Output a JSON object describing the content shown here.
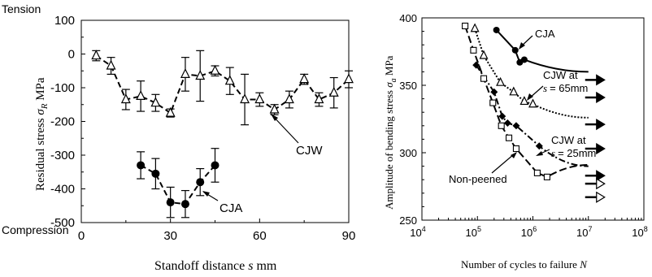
{
  "left_chart": {
    "type": "scatter",
    "xlabel_text": "Standoff distance ",
    "xlabel_symbol": "s",
    "xlabel_unit": " mm",
    "ylabel_text": "Residual stress ",
    "ylabel_symbol": "σ",
    "ylabel_sub": "R",
    "ylabel_unit": " MPa",
    "top_label": "Tension",
    "bottom_label": "Compression",
    "xlim": [
      0,
      90
    ],
    "ylim": [
      -500,
      100
    ],
    "xticks": [
      "0",
      "30",
      "60",
      "90"
    ],
    "yticks": [
      "100",
      "0",
      "-100",
      "-200",
      "-300",
      "-400",
      "-500"
    ],
    "series": [
      {
        "name": "CJW",
        "marker": "triangle",
        "line": "dashed",
        "points": [
          {
            "x": 5,
            "y": -5,
            "err": 15
          },
          {
            "x": 10,
            "y": -35,
            "err": 25
          },
          {
            "x": 15,
            "y": -135,
            "err": 30
          },
          {
            "x": 20,
            "y": -125,
            "err": 45
          },
          {
            "x": 25,
            "y": -145,
            "err": 25
          },
          {
            "x": 30,
            "y": -175,
            "err": 12
          },
          {
            "x": 35,
            "y": -60,
            "err": 50
          },
          {
            "x": 40,
            "y": -65,
            "err": 75
          },
          {
            "x": 45,
            "y": -50,
            "err": 15
          },
          {
            "x": 50,
            "y": -80,
            "err": 40
          },
          {
            "x": 55,
            "y": -135,
            "err": 75
          },
          {
            "x": 60,
            "y": -135,
            "err": 20
          },
          {
            "x": 65,
            "y": -165,
            "err": 15
          },
          {
            "x": 70,
            "y": -135,
            "err": 25
          },
          {
            "x": 75,
            "y": -75,
            "err": 15
          },
          {
            "x": 80,
            "y": -135,
            "err": 20
          },
          {
            "x": 85,
            "y": -115,
            "err": 45
          },
          {
            "x": 90,
            "y": -75,
            "err": 25
          }
        ]
      },
      {
        "name": "CJA",
        "marker": "circle",
        "line": "dashed",
        "points": [
          {
            "x": 20,
            "y": -330,
            "err": 40
          },
          {
            "x": 25,
            "y": -355,
            "err": 45
          },
          {
            "x": 30,
            "y": -440,
            "err": 45
          },
          {
            "x": 35,
            "y": -445,
            "err": 40
          },
          {
            "x": 40,
            "y": -380,
            "err": 40
          },
          {
            "x": 45,
            "y": -330,
            "err": 50
          }
        ]
      }
    ]
  },
  "right_chart": {
    "type": "scatter",
    "xscale": "log",
    "xlabel_text": "Number of cycles to failure ",
    "xlabel_symbol": "N",
    "ylabel_text": "Amplitude of bending stress ",
    "ylabel_symbol": "σ",
    "ylabel_sub": "a",
    "ylabel_unit": " MPa",
    "xlim": [
      10000,
      100000000
    ],
    "ylim": [
      250,
      400
    ],
    "xticks": [
      {
        "base": "10",
        "exp": "4"
      },
      {
        "base": "10",
        "exp": "5"
      },
      {
        "base": "10",
        "exp": "6"
      },
      {
        "base": "10",
        "exp": "7"
      },
      {
        "base": "10",
        "exp": "8"
      }
    ],
    "yticks": [
      "400",
      "350",
      "300",
      "250"
    ],
    "series": [
      {
        "name": "CJA",
        "marker": "circle",
        "points": [
          [
            220000,
            391
          ],
          [
            480000,
            376
          ],
          [
            580000,
            367
          ],
          [
            700000,
            369
          ]
        ],
        "runouts": [
          [
            10000000,
            354
          ]
        ]
      },
      {
        "name": "CJW at s = 65mm",
        "marker": "triangle",
        "points": [
          [
            90000,
            392
          ],
          [
            130000,
            372
          ],
          [
            260000,
            352
          ],
          [
            450000,
            345
          ],
          [
            700000,
            338
          ],
          [
            1000000,
            336
          ]
        ],
        "runouts": [
          [
            10000000,
            341
          ],
          [
            10000000,
            321
          ]
        ]
      },
      {
        "name": "CJW at s = 25mm",
        "marker": "diamond",
        "points": [
          [
            95000,
            365
          ],
          [
            200000,
            345
          ],
          [
            280000,
            327
          ],
          [
            350000,
            322
          ],
          [
            500000,
            320
          ],
          [
            1300000,
            305
          ]
        ],
        "runouts": [
          [
            10000000,
            303
          ]
        ]
      },
      {
        "name": "Non-peened",
        "marker": "square",
        "points": [
          [
            60000,
            394
          ],
          [
            85000,
            376
          ],
          [
            130000,
            355
          ],
          [
            190000,
            337
          ],
          [
            270000,
            320
          ],
          [
            370000,
            311
          ],
          [
            500000,
            303
          ],
          [
            1200000,
            285
          ],
          [
            1800000,
            282
          ]
        ],
        "runouts": [
          [
            10000000,
            283
          ],
          [
            10000000,
            277
          ],
          [
            10000000,
            267
          ]
        ]
      }
    ],
    "labels": {
      "cja": "CJA",
      "cjw65_line1": "CJW at",
      "cjw65_line2": "= 65mm",
      "cjw25_line1": "CJW at",
      "cjw25_line2": "= 25mm",
      "s_symbol": "s",
      "nonpeened": "Non-peened"
    }
  }
}
